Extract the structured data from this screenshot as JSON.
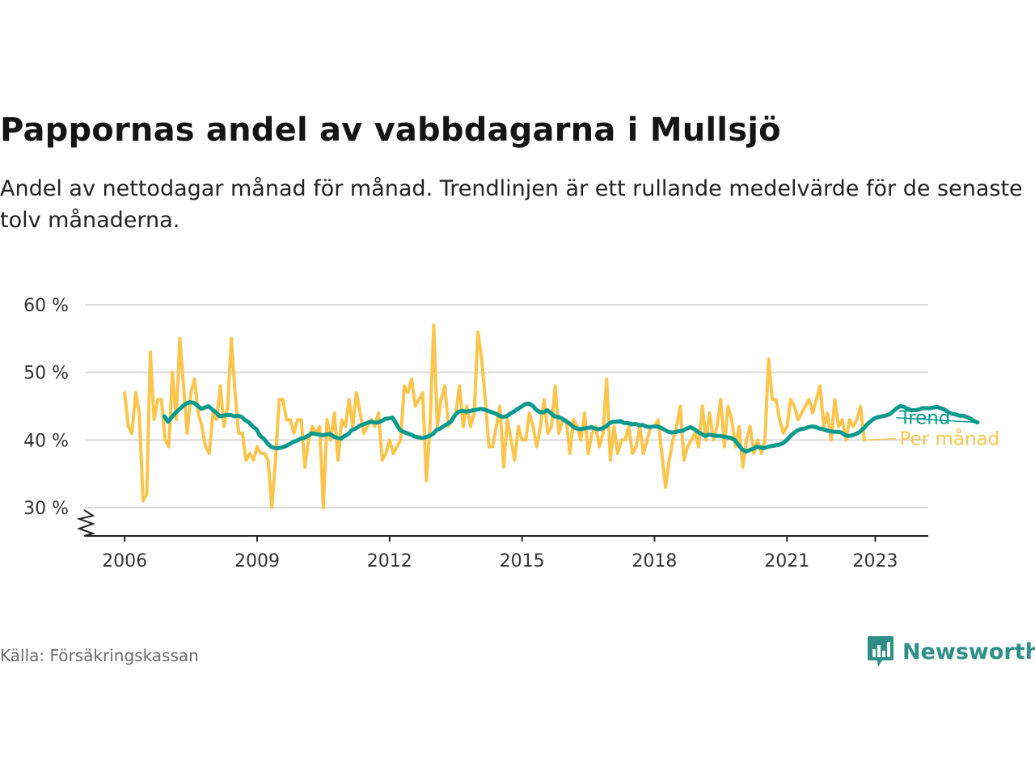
{
  "header": {
    "title": "Pappornas andel av vabbdagarna i Mullsjö",
    "subtitle": "Andel av nettodagar månad för månad. Trendlinjen är ett rullande medelvärde för de senaste tolv månaderna."
  },
  "footer": {
    "source": "Källa: Försäkringskassan",
    "brand": "Newsworthy",
    "brand_icon": "bar-chart-badge-icon"
  },
  "colors": {
    "monthly": "#FBC54D",
    "trend": "#0B9A8D",
    "grid": "#d9d9d9",
    "axis": "#222222",
    "brand": "#2e8f86"
  },
  "chart_data": {
    "type": "line",
    "title": "Pappornas andel av vabbdagarna i Mullsjö",
    "subtitle": "Andel av nettodagar månad för månad. Trendlinjen är ett rullande medelvärde för de senaste tolv månaderna.",
    "xlabel": "",
    "ylabel": "",
    "x_unit": "year (decimal)",
    "xlim": [
      2005.1,
      2024.2
    ],
    "ylim": [
      26,
      60
    ],
    "y_axis_broken": true,
    "x_ticks": [
      2006,
      2009,
      2012,
      2015,
      2018,
      2021,
      2023
    ],
    "x_tick_labels": [
      "2006",
      "2009",
      "2012",
      "2015",
      "2018",
      "2021",
      "2023"
    ],
    "y_ticks": [
      30,
      40,
      50,
      60
    ],
    "y_tick_labels": [
      "30 %",
      "40 %",
      "50 %",
      "60 %"
    ],
    "grid": true,
    "legend": "inline labels at right end of lines",
    "series": [
      {
        "name": "Per månad",
        "color": "#FBC54D",
        "x_start": 2006.0,
        "x_step_months": 1,
        "values": [
          47,
          42,
          41,
          47,
          44,
          31,
          32,
          53,
          43,
          46,
          46,
          40,
          39,
          50,
          43,
          55,
          48,
          41,
          47,
          49,
          44,
          42,
          39,
          38,
          44,
          43,
          48,
          42,
          45,
          55,
          47,
          41,
          41,
          37,
          38,
          37,
          39,
          38,
          38,
          37,
          30,
          37,
          46,
          46,
          43,
          43,
          41,
          43,
          43,
          36,
          40,
          42,
          41,
          42,
          30,
          43,
          40,
          44,
          37,
          43,
          42,
          46,
          42,
          47,
          44,
          41,
          42,
          43,
          42,
          44,
          37,
          38,
          40,
          38,
          39,
          40,
          48,
          47,
          49,
          45,
          46,
          47,
          34,
          42,
          57,
          42,
          46,
          48,
          42,
          43,
          44,
          48,
          42,
          45,
          42,
          44,
          56,
          52,
          46,
          39,
          39,
          42,
          45,
          36,
          43,
          40,
          37,
          42,
          40,
          40,
          44,
          42,
          39,
          42,
          46,
          41,
          42,
          48,
          41,
          43,
          43,
          38,
          43,
          42,
          40,
          44,
          38,
          41,
          42,
          39,
          41,
          49,
          37,
          42,
          38,
          40,
          40,
          42,
          38,
          39,
          42,
          38,
          40,
          42,
          42,
          43,
          38,
          33,
          37,
          40,
          42,
          45,
          37,
          39,
          40,
          41,
          39,
          45,
          40,
          44,
          40,
          42,
          46,
          39,
          45,
          43,
          39,
          42,
          36,
          40,
          42,
          38,
          40,
          38,
          40,
          52,
          46,
          46,
          43,
          41,
          42,
          46,
          45,
          43,
          44,
          45,
          46,
          44,
          46,
          48,
          42,
          44,
          40,
          46,
          42,
          43,
          40,
          43,
          42,
          43,
          45,
          40
        ],
        "label_x": 2023.55,
        "label_y": 40.2
      },
      {
        "name": "Trend",
        "color": "#0B9A8D",
        "x_start": 2006.9,
        "x_step_months": 1,
        "values": [
          43.5,
          42.7,
          43.4,
          44,
          44.5,
          45,
          45.4,
          45.6,
          45.5,
          45.1,
          44.6,
          44.8,
          45,
          44.5,
          44.1,
          43.5,
          43.6,
          43.7,
          43.7,
          43.5,
          43.6,
          43.4,
          42.9,
          42.6,
          42,
          41.6,
          40.6,
          40.2,
          39.5,
          39,
          38.8,
          38.8,
          38.9,
          39.1,
          39.4,
          39.7,
          39.9,
          40.2,
          40.3,
          40.6,
          41,
          40.9,
          40.8,
          40.7,
          40.8,
          40.9,
          40.5,
          40.3,
          40.2,
          40.6,
          40.9,
          41.5,
          41.7,
          42.1,
          42.3,
          42.5,
          42.7,
          42.6,
          42.6,
          42.8,
          43.1,
          43.2,
          43.3,
          42.4,
          41.5,
          41.2,
          41,
          40.8,
          40.5,
          40.4,
          40.3,
          40.4,
          40.6,
          40.9,
          41.5,
          41.7,
          42.1,
          42.4,
          42.8,
          43.7,
          44.2,
          44.3,
          44.2,
          44.3,
          44.4,
          44.5,
          44.6,
          44.5,
          44.3,
          44.1,
          43.9,
          43.6,
          43.4,
          43.5,
          43.9,
          44.2,
          44.6,
          44.9,
          45.3,
          45.4,
          45.1,
          44.5,
          44.1,
          44.1,
          44.4,
          44,
          43.5,
          43.4,
          43.2,
          42.8,
          42.5,
          42,
          41.7,
          41.6,
          41.7,
          41.8,
          41.9,
          41.7,
          41.6,
          41.7,
          42,
          42.5,
          42.7,
          42.7,
          42.8,
          42.5,
          42.5,
          42.3,
          42.4,
          42.2,
          42.2,
          42,
          41.9,
          42,
          42,
          41.8,
          41.5,
          41.2,
          41.1,
          41.2,
          41.3,
          41.4,
          41.7,
          41.9,
          41.6,
          41.2,
          40.9,
          40.6,
          40.8,
          40.7,
          40.6,
          40.6,
          40.5,
          40.4,
          40.3,
          40,
          39.3,
          38.6,
          38.3,
          38.5,
          38.7,
          39,
          38.9,
          38.8,
          39,
          39.1,
          39.2,
          39.3,
          39.5,
          39.9,
          40.5,
          41,
          41.4,
          41.6,
          41.7,
          41.9,
          42,
          41.9,
          41.7,
          41.6,
          41.4,
          41.3,
          41.2,
          41.2,
          41.1,
          40.7,
          40.6,
          40.7,
          40.9,
          41.2,
          41.7,
          42.3,
          42.8,
          43.2,
          43.4,
          43.5,
          43.6,
          43.8,
          44.2,
          44.7,
          45,
          44.9,
          44.6,
          44.4,
          44.4,
          44.5,
          44.7,
          44.7,
          44.7,
          44.8,
          44.9,
          44.7,
          44.5,
          44.1,
          43.9,
          43.8,
          43.6,
          43.6,
          43.4,
          43.2,
          42.8,
          42.6
        ],
        "label_x": 2023.55,
        "label_y": 43.3
      }
    ]
  }
}
